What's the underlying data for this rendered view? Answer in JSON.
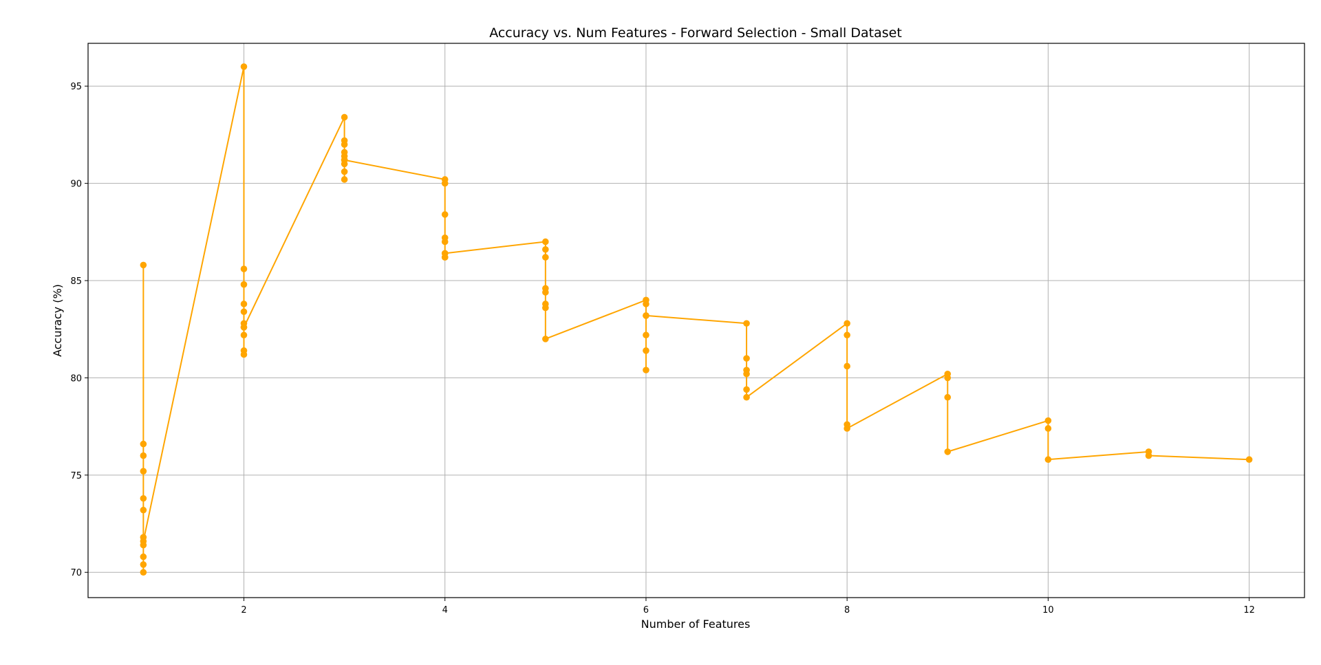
{
  "chart_data": {
    "type": "line",
    "title": "Accuracy vs. Num Features - Forward Selection - Small Dataset",
    "xlabel": "Number of Features",
    "ylabel": "Accuracy (%)",
    "xlim": [
      0.45,
      12.55
    ],
    "ylim": [
      68.7,
      97.2
    ],
    "xticks": [
      2,
      4,
      6,
      8,
      10,
      12
    ],
    "yticks": [
      70,
      75,
      80,
      85,
      90,
      95
    ],
    "grid": true,
    "color": "#FFA500",
    "x": [
      1,
      1,
      1,
      1,
      1,
      1,
      1,
      1,
      1,
      1,
      1,
      1,
      2,
      2,
      2,
      2,
      2,
      2,
      2,
      2,
      2,
      2,
      2,
      3,
      3,
      3,
      3,
      3,
      3,
      3,
      3,
      3,
      3,
      4,
      4,
      4,
      4,
      4,
      4,
      4,
      4,
      4,
      5,
      5,
      5,
      5,
      5,
      5,
      5,
      5,
      6,
      6,
      6,
      6,
      6,
      6,
      6,
      7,
      7,
      7,
      7,
      7,
      7,
      8,
      8,
      8,
      8,
      8,
      9,
      9,
      9,
      9,
      10,
      10,
      10,
      11,
      11,
      12
    ],
    "y": [
      70.0,
      70.4,
      70.8,
      71.4,
      71.8,
      73.2,
      73.8,
      75.2,
      76.0,
      76.6,
      85.8,
      71.6,
      96.0,
      85.6,
      84.8,
      83.8,
      83.4,
      82.8,
      82.6,
      82.2,
      81.4,
      81.2,
      82.6,
      93.4,
      92.2,
      92.0,
      91.6,
      91.4,
      91.2,
      91.0,
      90.6,
      90.2,
      91.2,
      90.2,
      90.0,
      88.4,
      87.2,
      87.0,
      86.4,
      86.2,
      86.2,
      86.4,
      87.0,
      86.6,
      86.2,
      84.6,
      84.4,
      83.8,
      83.6,
      82.0,
      84.0,
      83.8,
      83.2,
      82.2,
      81.4,
      80.4,
      83.2,
      82.8,
      81.0,
      80.4,
      80.2,
      79.4,
      79.0,
      82.8,
      82.2,
      80.6,
      77.6,
      77.4,
      80.2,
      80.0,
      79.0,
      76.2,
      77.8,
      77.4,
      75.8,
      76.2,
      76.0,
      75.8
    ]
  }
}
